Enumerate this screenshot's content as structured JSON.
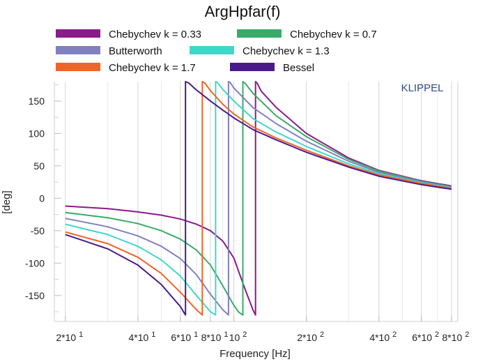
{
  "chart_data": {
    "type": "line",
    "title": "ArgHpfar(f)",
    "xlabel": "Frequency [Hz]",
    "ylabel": "[deg]",
    "watermark": "KLIPPEL",
    "x_scale": "log",
    "xlim": [
      18,
      850
    ],
    "ylim": [
      -190,
      180
    ],
    "y_ticks": [
      150,
      100,
      50,
      0,
      -50,
      -100,
      -150
    ],
    "x_tick_labels": [
      {
        "value": 20,
        "base": "2*10",
        "exp": "1"
      },
      {
        "value": 40,
        "base": "4*10",
        "exp": "1"
      },
      {
        "value": 60,
        "base": "6*10",
        "exp": "1"
      },
      {
        "value": 80,
        "base": "8*10",
        "exp": "1"
      },
      {
        "value": 100,
        "base": "10",
        "exp": "2"
      },
      {
        "value": 200,
        "base": "2*10",
        "exp": "2"
      },
      {
        "value": 400,
        "base": "4*10",
        "exp": "2"
      },
      {
        "value": 600,
        "base": "6*10",
        "exp": "2"
      },
      {
        "value": 800,
        "base": "8*10",
        "exp": "2"
      }
    ],
    "grid": true,
    "legend_position": "top",
    "series": [
      {
        "name": "Chebychev k = 0.33",
        "color": "#8b1a8b",
        "x": [
          20,
          30,
          40,
          50,
          60,
          70,
          80,
          90,
          100,
          110,
          120,
          123,
          124,
          130,
          150,
          200,
          300,
          400,
          600,
          800
        ],
        "y": [
          -12,
          -16,
          -21,
          -26,
          -32,
          -40,
          -50,
          -66,
          -92,
          -135,
          -172,
          -180,
          180,
          165,
          140,
          100,
          62,
          43,
          27,
          19
        ]
      },
      {
        "name": "Chebychev k = 0.7",
        "color": "#3aaa6a",
        "x": [
          20,
          30,
          40,
          50,
          60,
          70,
          80,
          90,
          100,
          105,
          109,
          110,
          120,
          150,
          200,
          300,
          400,
          600,
          800
        ],
        "y": [
          -22,
          -30,
          -39,
          -50,
          -63,
          -80,
          -103,
          -135,
          -165,
          -176,
          -180,
          180,
          162,
          127,
          95,
          60,
          42,
          26,
          18
        ]
      },
      {
        "name": "Butterworth",
        "color": "#8080c0",
        "x": [
          20,
          30,
          40,
          50,
          60,
          70,
          80,
          90,
          95,
          96,
          100,
          120,
          150,
          200,
          300,
          400,
          600,
          800
        ],
        "y": [
          -31,
          -44,
          -58,
          -74,
          -93,
          -118,
          -148,
          -172,
          -180,
          180,
          170,
          140,
          115,
          88,
          57,
          40,
          25,
          17
        ]
      },
      {
        "name": "Chebychev k = 1.3",
        "color": "#3fd8c8",
        "x": [
          20,
          30,
          40,
          50,
          60,
          70,
          80,
          84,
          85,
          90,
          100,
          120,
          150,
          200,
          300,
          400,
          600,
          800
        ],
        "y": [
          -40,
          -56,
          -74,
          -95,
          -120,
          -150,
          -175,
          -180,
          180,
          168,
          150,
          123,
          102,
          80,
          53,
          38,
          24,
          16
        ]
      },
      {
        "name": "Chebychev k = 1.7",
        "color": "#f06428",
        "x": [
          20,
          30,
          40,
          50,
          60,
          70,
          74,
          75,
          80,
          90,
          100,
          120,
          150,
          200,
          300,
          400,
          600,
          800
        ],
        "y": [
          -52,
          -70,
          -91,
          -116,
          -145,
          -172,
          -180,
          180,
          166,
          145,
          130,
          110,
          93,
          74,
          50,
          36,
          23,
          15
        ]
      },
      {
        "name": "Bessel",
        "color": "#4a1a8c",
        "x": [
          20,
          30,
          40,
          50,
          60,
          63,
          64,
          70,
          80,
          90,
          100,
          120,
          150,
          200,
          300,
          400,
          600,
          800
        ],
        "y": [
          -56,
          -78,
          -103,
          -133,
          -167,
          -180,
          180,
          167,
          150,
          136,
          124,
          106,
          90,
          71,
          48,
          34,
          21,
          14
        ]
      }
    ]
  }
}
